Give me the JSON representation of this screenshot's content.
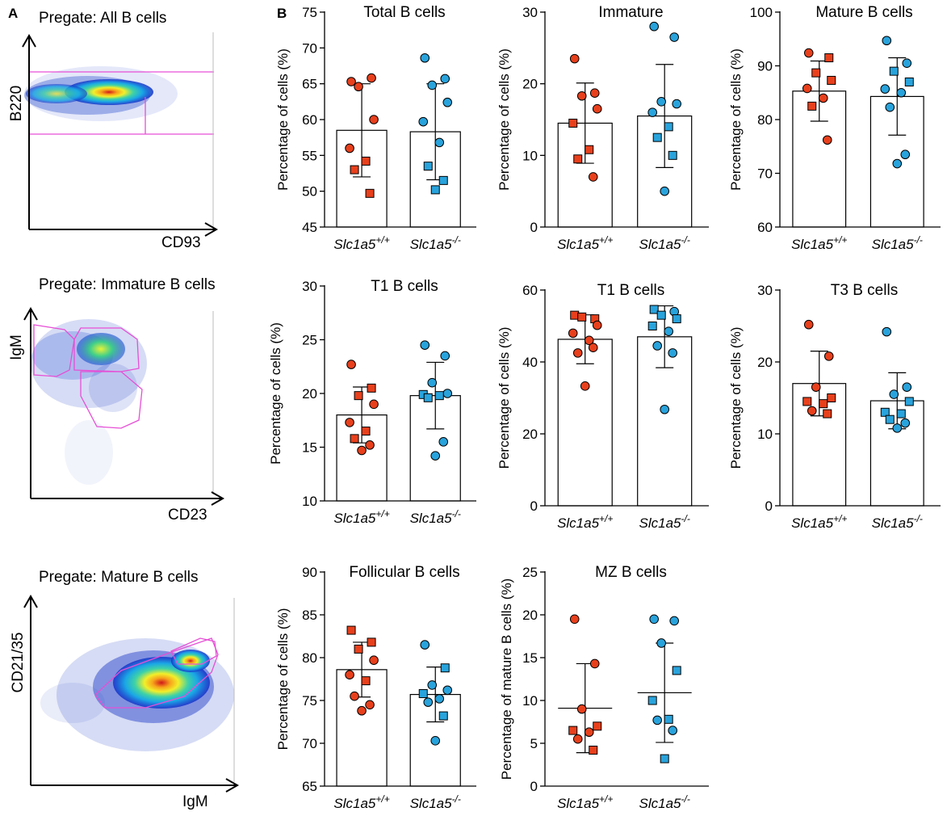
{
  "figure": {
    "panel_a_label": "A",
    "panel_b_label": "B"
  },
  "colors": {
    "wt": "#e8401c",
    "ko": "#29a3dc",
    "gate": "#e64fd6"
  },
  "flow_plots": [
    {
      "title": "Pregate: All B cells",
      "xlabel": "CD93",
      "ylabel": "B220"
    },
    {
      "title": "Pregate: Immature B cells",
      "xlabel": "CD23",
      "ylabel": "IgM"
    },
    {
      "title": "Pregate: Mature B cells",
      "xlabel": "IgM",
      "ylabel": "CD21/35"
    }
  ],
  "genotypes": {
    "wt": {
      "base": "Slc1a5",
      "sup": "+/+"
    },
    "ko": {
      "base": "Slc1a5",
      "sup": "-/-"
    }
  },
  "chart_data": [
    {
      "type": "bar",
      "title": "Total B cells",
      "ylabel": "Percentage of cells (%)",
      "ylim": [
        45,
        75
      ],
      "yticks": [
        45,
        50,
        55,
        60,
        65,
        70,
        75
      ],
      "categories": [
        "Slc1a5+/+",
        "Slc1a5-/-"
      ],
      "bar_values": [
        58.5,
        58.3
      ],
      "sd": [
        6.5,
        6.7
      ],
      "points": [
        [
          {
            "v": 65.3,
            "s": "c"
          },
          {
            "v": 65.8,
            "s": "c"
          },
          {
            "v": 64.6,
            "s": "c"
          },
          {
            "v": 60.0,
            "s": "c"
          },
          {
            "v": 56.0,
            "s": "c"
          },
          {
            "v": 54.2,
            "s": "s"
          },
          {
            "v": 53.0,
            "s": "s"
          },
          {
            "v": 49.7,
            "s": "s"
          }
        ],
        [
          {
            "v": 68.6,
            "s": "c"
          },
          {
            "v": 65.7,
            "s": "c"
          },
          {
            "v": 64.8,
            "s": "c"
          },
          {
            "v": 62.4,
            "s": "c"
          },
          {
            "v": 59.7,
            "s": "c"
          },
          {
            "v": 56.8,
            "s": "c"
          },
          {
            "v": 53.5,
            "s": "s"
          },
          {
            "v": 51.5,
            "s": "s"
          },
          {
            "v": 50.2,
            "s": "s"
          }
        ]
      ]
    },
    {
      "type": "bar",
      "title": "Immature",
      "ylabel": "Percentage of cells (%)",
      "ylim": [
        0,
        30
      ],
      "yticks": [
        0,
        10,
        20,
        30
      ],
      "categories": [
        "Slc1a5+/+",
        "Slc1a5-/-"
      ],
      "bar_values": [
        14.5,
        15.5
      ],
      "sd": [
        5.6,
        7.2
      ],
      "points": [
        [
          {
            "v": 23.5,
            "s": "c"
          },
          {
            "v": 18.7,
            "s": "c"
          },
          {
            "v": 18.3,
            "s": "c"
          },
          {
            "v": 16.5,
            "s": "c"
          },
          {
            "v": 14.5,
            "s": "s"
          },
          {
            "v": 10.8,
            "s": "s"
          },
          {
            "v": 9.5,
            "s": "s"
          },
          {
            "v": 7.0,
            "s": "c"
          }
        ],
        [
          {
            "v": 28.0,
            "s": "c"
          },
          {
            "v": 26.5,
            "s": "c"
          },
          {
            "v": 17.5,
            "s": "c"
          },
          {
            "v": 17.2,
            "s": "c"
          },
          {
            "v": 16.0,
            "s": "c"
          },
          {
            "v": 14.0,
            "s": "s"
          },
          {
            "v": 12.5,
            "s": "s"
          },
          {
            "v": 10.0,
            "s": "s"
          },
          {
            "v": 5.0,
            "s": "c"
          }
        ]
      ]
    },
    {
      "type": "bar",
      "title": "Mature B cells",
      "ylabel": "Percentage of cells (%)",
      "ylim": [
        60,
        100
      ],
      "yticks": [
        60,
        70,
        80,
        90,
        100
      ],
      "categories": [
        "Slc1a5+/+",
        "Slc1a5-/-"
      ],
      "bar_values": [
        85.3,
        84.3
      ],
      "sd": [
        5.6,
        7.2
      ],
      "points": [
        [
          {
            "v": 92.4,
            "s": "c"
          },
          {
            "v": 91.5,
            "s": "s"
          },
          {
            "v": 88.7,
            "s": "s"
          },
          {
            "v": 87.3,
            "s": "s"
          },
          {
            "v": 85.8,
            "s": "c"
          },
          {
            "v": 84.0,
            "s": "c"
          },
          {
            "v": 82.5,
            "s": "s"
          },
          {
            "v": 76.2,
            "s": "c"
          }
        ],
        [
          {
            "v": 94.7,
            "s": "c"
          },
          {
            "v": 90.5,
            "s": "c"
          },
          {
            "v": 89.0,
            "s": "s"
          },
          {
            "v": 87.0,
            "s": "s"
          },
          {
            "v": 85.7,
            "s": "c"
          },
          {
            "v": 85.0,
            "s": "c"
          },
          {
            "v": 82.3,
            "s": "c"
          },
          {
            "v": 73.5,
            "s": "c"
          },
          {
            "v": 71.8,
            "s": "c"
          }
        ]
      ]
    },
    {
      "type": "bar",
      "title": "T1 B cells",
      "ylabel": "Percentage of cells (%)",
      "ylim": [
        10,
        30
      ],
      "yticks": [
        10,
        15,
        20,
        25,
        30
      ],
      "categories": [
        "Slc1a5+/+",
        "Slc1a5-/-"
      ],
      "bar_values": [
        18.0,
        19.8
      ],
      "sd": [
        2.6,
        3.1
      ],
      "points": [
        [
          {
            "v": 22.7,
            "s": "c"
          },
          {
            "v": 20.5,
            "s": "s"
          },
          {
            "v": 19.8,
            "s": "s"
          },
          {
            "v": 19.0,
            "s": "c"
          },
          {
            "v": 17.3,
            "s": "c"
          },
          {
            "v": 16.5,
            "s": "s"
          },
          {
            "v": 15.8,
            "s": "s"
          },
          {
            "v": 15.2,
            "s": "c"
          },
          {
            "v": 14.7,
            "s": "c"
          }
        ],
        [
          {
            "v": 24.5,
            "s": "c"
          },
          {
            "v": 23.5,
            "s": "c"
          },
          {
            "v": 21.0,
            "s": "c"
          },
          {
            "v": 20.0,
            "s": "c"
          },
          {
            "v": 19.9,
            "s": "s"
          },
          {
            "v": 19.8,
            "s": "s"
          },
          {
            "v": 19.6,
            "s": "s"
          },
          {
            "v": 15.5,
            "s": "c"
          },
          {
            "v": 14.2,
            "s": "c"
          }
        ]
      ]
    },
    {
      "type": "bar",
      "title": "T1 B cells",
      "ylabel": "Percentage of cells (%)",
      "ylim": [
        0,
        60
      ],
      "yticks": [
        0,
        20,
        40,
        60
      ],
      "categories": [
        "Slc1a5+/+",
        "Slc1a5-/-"
      ],
      "bar_values": [
        46.3,
        47.0
      ],
      "sd": [
        6.8,
        8.6
      ],
      "points": [
        [
          {
            "v": 53.0,
            "s": "s"
          },
          {
            "v": 52.0,
            "s": "s"
          },
          {
            "v": 52.5,
            "s": "s"
          },
          {
            "v": 50.2,
            "s": "c"
          },
          {
            "v": 48.0,
            "s": "c"
          },
          {
            "v": 46.0,
            "s": "c"
          },
          {
            "v": 42.5,
            "s": "c"
          },
          {
            "v": 44.0,
            "s": "c"
          },
          {
            "v": 33.3,
            "s": "c"
          }
        ],
        [
          {
            "v": 54.6,
            "s": "s"
          },
          {
            "v": 54.0,
            "s": "c"
          },
          {
            "v": 53.0,
            "s": "s"
          },
          {
            "v": 52.0,
            "s": "s"
          },
          {
            "v": 50.0,
            "s": "s"
          },
          {
            "v": 48.5,
            "s": "c"
          },
          {
            "v": 44.5,
            "s": "c"
          },
          {
            "v": 42.5,
            "s": "c"
          },
          {
            "v": 26.8,
            "s": "c"
          }
        ]
      ]
    },
    {
      "type": "bar",
      "title": "T3 B cells",
      "ylabel": "Percentage of cells (%)",
      "ylim": [
        0,
        30
      ],
      "yticks": [
        0,
        10,
        20,
        30
      ],
      "categories": [
        "Slc1a5+/+",
        "Slc1a5-/-"
      ],
      "bar_values": [
        17.0,
        14.6
      ],
      "sd": [
        4.5,
        3.9
      ],
      "points": [
        [
          {
            "v": 25.2,
            "s": "c"
          },
          {
            "v": 20.8,
            "s": "c"
          },
          {
            "v": 16.5,
            "s": "c"
          },
          {
            "v": 15.0,
            "s": "s"
          },
          {
            "v": 14.5,
            "s": "s"
          },
          {
            "v": 14.2,
            "s": "s"
          },
          {
            "v": 13.2,
            "s": "c"
          },
          {
            "v": 12.8,
            "s": "s"
          }
        ],
        [
          {
            "v": 24.2,
            "s": "c"
          },
          {
            "v": 16.5,
            "s": "c"
          },
          {
            "v": 15.5,
            "s": "c"
          },
          {
            "v": 14.5,
            "s": "s"
          },
          {
            "v": 13.0,
            "s": "s"
          },
          {
            "v": 12.8,
            "s": "s"
          },
          {
            "v": 12.0,
            "s": "s"
          },
          {
            "v": 11.5,
            "s": "c"
          },
          {
            "v": 10.8,
            "s": "c"
          }
        ]
      ]
    },
    {
      "type": "bar",
      "title": "Follicular B cells",
      "ylabel": "Percentage of cells (%)",
      "ylim": [
        65,
        90
      ],
      "yticks": [
        65,
        70,
        75,
        80,
        85,
        90
      ],
      "categories": [
        "Slc1a5+/+",
        "Slc1a5-/-"
      ],
      "bar_values": [
        78.6,
        75.7
      ],
      "sd": [
        3.2,
        3.2
      ],
      "points": [
        [
          {
            "v": 83.2,
            "s": "s"
          },
          {
            "v": 81.8,
            "s": "s"
          },
          {
            "v": 81.0,
            "s": "s"
          },
          {
            "v": 79.7,
            "s": "c"
          },
          {
            "v": 78.0,
            "s": "c"
          },
          {
            "v": 77.3,
            "s": "s"
          },
          {
            "v": 75.5,
            "s": "c"
          },
          {
            "v": 74.5,
            "s": "c"
          },
          {
            "v": 73.8,
            "s": "c"
          }
        ],
        [
          {
            "v": 81.5,
            "s": "c"
          },
          {
            "v": 78.8,
            "s": "s"
          },
          {
            "v": 76.8,
            "s": "c"
          },
          {
            "v": 76.2,
            "s": "c"
          },
          {
            "v": 75.8,
            "s": "s"
          },
          {
            "v": 75.2,
            "s": "c"
          },
          {
            "v": 74.8,
            "s": "c"
          },
          {
            "v": 73.2,
            "s": "s"
          },
          {
            "v": 70.3,
            "s": "c"
          }
        ]
      ]
    },
    {
      "type": "scatter",
      "title": "MZ B cells",
      "ylabel": "Percentage of mature B cells (%)",
      "ylim": [
        0,
        25
      ],
      "yticks": [
        0,
        5,
        10,
        15,
        20,
        25
      ],
      "categories": [
        "Slc1a5+/+",
        "Slc1a5-/-"
      ],
      "mean_values": [
        9.1,
        10.9
      ],
      "sd": [
        5.2,
        5.8
      ],
      "points": [
        [
          {
            "v": 19.5,
            "s": "c"
          },
          {
            "v": 14.3,
            "s": "c"
          },
          {
            "v": 9.0,
            "s": "c"
          },
          {
            "v": 7.0,
            "s": "s"
          },
          {
            "v": 6.5,
            "s": "s"
          },
          {
            "v": 6.3,
            "s": "c"
          },
          {
            "v": 5.5,
            "s": "c"
          },
          {
            "v": 4.2,
            "s": "s"
          }
        ],
        [
          {
            "v": 19.5,
            "s": "c"
          },
          {
            "v": 19.3,
            "s": "c"
          },
          {
            "v": 16.7,
            "s": "c"
          },
          {
            "v": 13.5,
            "s": "s"
          },
          {
            "v": 10.0,
            "s": "s"
          },
          {
            "v": 7.8,
            "s": "s"
          },
          {
            "v": 7.7,
            "s": "c"
          },
          {
            "v": 6.5,
            "s": "c"
          },
          {
            "v": 3.2,
            "s": "s"
          }
        ]
      ]
    }
  ]
}
